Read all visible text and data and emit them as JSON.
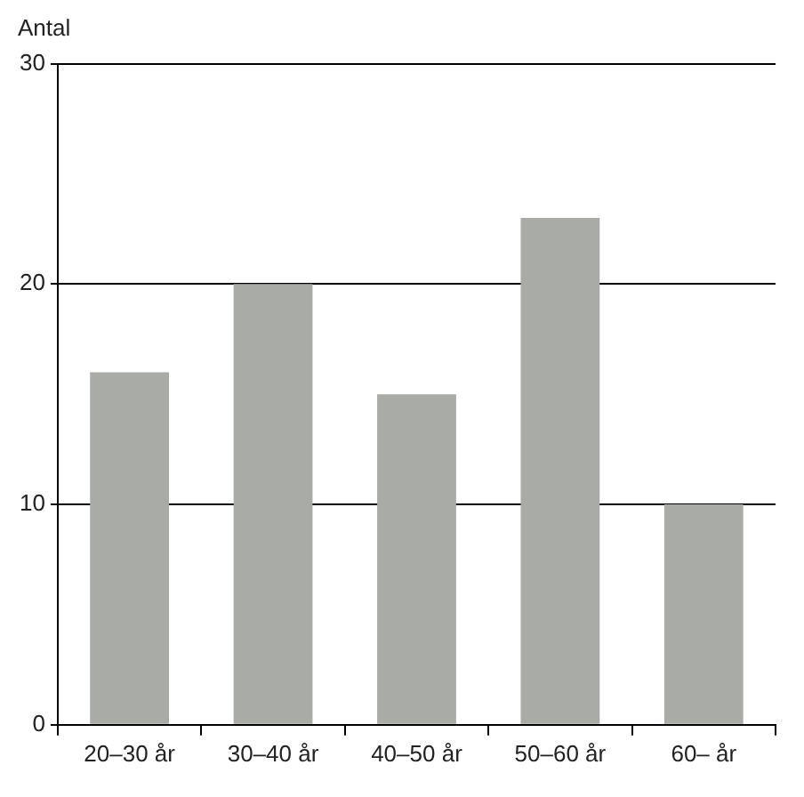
{
  "chart_data": {
    "type": "bar",
    "ylabel": "Antal",
    "categories": [
      "20–30 år",
      "30–40 år",
      "40–50 år",
      "50–60 år",
      "60– år"
    ],
    "values": [
      16,
      20,
      15,
      23,
      10
    ],
    "color": "#a8aba6",
    "ylim": [
      0,
      30
    ],
    "yticks": [
      0,
      10,
      20,
      30
    ],
    "grid": "y",
    "legend": false
  }
}
